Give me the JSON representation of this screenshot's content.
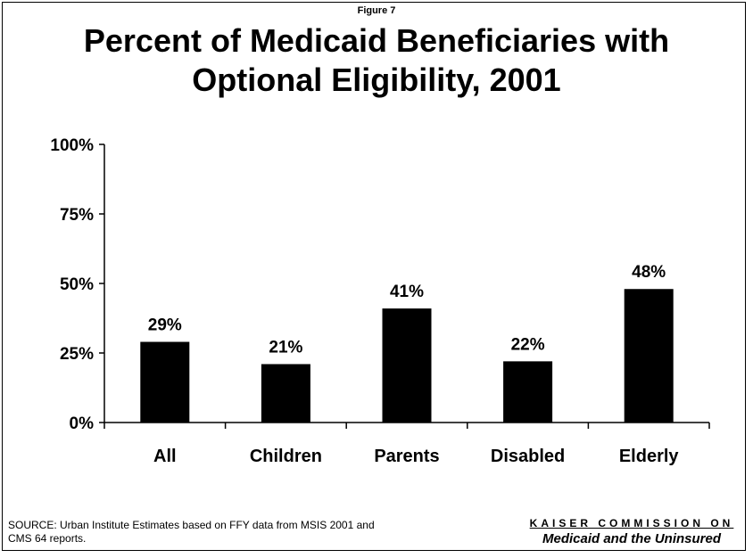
{
  "header": {
    "figure_label": "Figure 7",
    "title_line1": "Percent of Medicaid Beneficiaries with",
    "title_line2": "Optional Eligibility, 2001"
  },
  "footer": {
    "source_line1": "SOURCE: Urban Institute Estimates based on FFY data from MSIS 2001 and",
    "source_line2": "CMS 64 reports.",
    "brand_top": "KAISER COMMISSION ON",
    "brand_bottom": "Medicaid and the Uninsured"
  },
  "chart_data": {
    "type": "bar",
    "title": "Percent of Medicaid Beneficiaries with Optional Eligibility, 2001",
    "categories": [
      "All",
      "Children",
      "Parents",
      "Disabled",
      "Elderly"
    ],
    "values": [
      29,
      21,
      41,
      22,
      48
    ],
    "value_labels": [
      "29%",
      "21%",
      "41%",
      "22%",
      "48%"
    ],
    "ylim": [
      0,
      100
    ],
    "yticks": [
      0,
      25,
      50,
      75,
      100
    ],
    "ytick_labels": [
      "0%",
      "25%",
      "50%",
      "75%",
      "100%"
    ],
    "xlabel": "",
    "ylabel": "",
    "bar_color": "#000000",
    "grid": false,
    "legend": "none"
  }
}
